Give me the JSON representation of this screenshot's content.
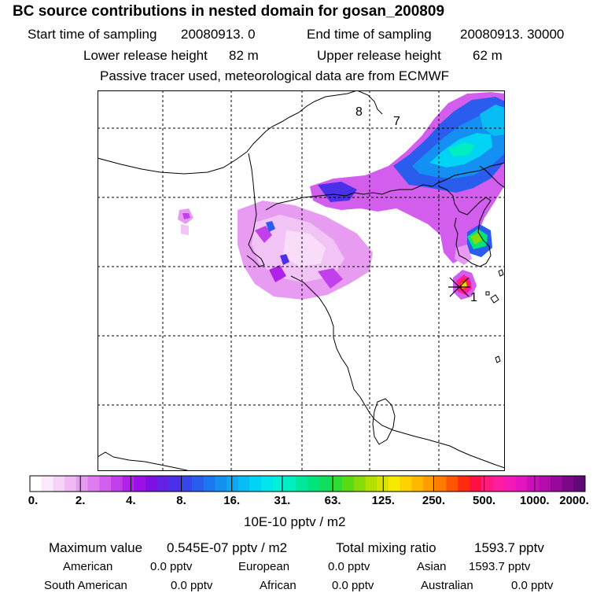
{
  "header": {
    "title": "BC  source contributions in nested domain for gosan_200809",
    "sampling_start_label": "Start time of sampling",
    "sampling_start_value": "20080913.    0",
    "sampling_end_label": "End time of sampling",
    "sampling_end_value": "20080913. 30000",
    "lower_release_label": "Lower release height",
    "lower_release_value": "82 m",
    "upper_release_label": "Upper release height",
    "upper_release_value": "62 m",
    "tracer_note": "Passive tracer used, meteorological data are from ECMWF"
  },
  "map": {
    "markers": [
      {
        "label": "8"
      },
      {
        "label": "7"
      },
      {
        "label": "1"
      }
    ],
    "source_station": "gosan"
  },
  "colorbar": {
    "labels": [
      "0.",
      "2.",
      "4.",
      "8.",
      "16.",
      "31.",
      "63.",
      "125.",
      "250.",
      "500.",
      "1000.",
      "2000."
    ],
    "colors": [
      "#ffffff",
      "#fbe8fb",
      "#f5d2f7",
      "#f0b8f5",
      "#e89af2",
      "#df7cf0",
      "#d35eee",
      "#c23fec",
      "#b021ea",
      "#9a10e6",
      "#7f10e4",
      "#6420e4",
      "#4a30e8",
      "#3646ea",
      "#2a5cee",
      "#1b77f0",
      "#148ff2",
      "#10a6f2",
      "#08bdf4",
      "#00d4f4",
      "#00e6ec",
      "#00f0d8",
      "#00eec0",
      "#00e89c",
      "#00e47c",
      "#10de5c",
      "#30dc34",
      "#5ada10",
      "#86dc08",
      "#b2e000",
      "#d8e400",
      "#f6e800",
      "#fcd200",
      "#ffb800",
      "#ff9c00",
      "#ff7a00",
      "#ff5400",
      "#ff2c10",
      "#ff1040",
      "#ff1a7c",
      "#ff1ca0",
      "#f41ab8",
      "#e414c0",
      "#cc10b8",
      "#b40cac",
      "#98089a",
      "#7c0888",
      "#600878"
    ],
    "units": "10E-10 pptv / m2"
  },
  "summary": {
    "max_label": "Maximum value",
    "max_value": "0.545E-07 pptv / m2",
    "total_label": "Total mixing ratio",
    "total_value": "1593.7 pptv",
    "regions": [
      {
        "name": "American",
        "value": "0.0 pptv"
      },
      {
        "name": "European",
        "value": "0.0 pptv"
      },
      {
        "name": "Asian",
        "value": "1593.7 pptv"
      },
      {
        "name": "South American",
        "value": "0.0 pptv"
      },
      {
        "name": "African",
        "value": "0.0 pptv"
      },
      {
        "name": "Australian",
        "value": "0.0 pptv"
      }
    ]
  }
}
